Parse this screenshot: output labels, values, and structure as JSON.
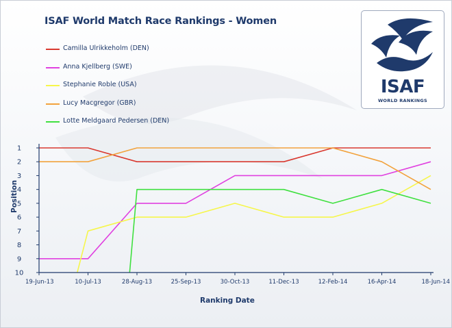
{
  "chart_data": {
    "type": "line",
    "title": "ISAF World Match Race Rankings - Women",
    "xlabel": "Ranking Date",
    "ylabel": "Position",
    "categories": [
      "19-Jun-13",
      "10-Jul-13",
      "28-Aug-13",
      "25-Sep-13",
      "30-Oct-13",
      "11-Dec-13",
      "12-Feb-14",
      "16-Apr-14",
      "18-Jun-14"
    ],
    "yticks": [
      1,
      2,
      3,
      4,
      5,
      6,
      7,
      8,
      9,
      10
    ],
    "ylim": [
      10,
      1
    ],
    "y_inverted": true,
    "grid": false,
    "legend_position": "top-left",
    "series": [
      {
        "name": "Camilla Ulrikkeholm (DEN)",
        "color": "#d9382f",
        "values": [
          1,
          1,
          2,
          2,
          2,
          2,
          1,
          1,
          1
        ]
      },
      {
        "name": "Anna Kjellberg (SWE)",
        "color": "#e040e0",
        "values": [
          9,
          9,
          5,
          5,
          3,
          3,
          3,
          3,
          2
        ]
      },
      {
        "name": "Stephanie Roble (USA)",
        "color": "#f6f64a",
        "points": [
          [
            0.78,
            10
          ],
          [
            1,
            7
          ],
          [
            1.5,
            6.5
          ],
          [
            2,
            6
          ],
          [
            3,
            6
          ],
          [
            4,
            5
          ],
          [
            5,
            6
          ],
          [
            6,
            6
          ],
          [
            7,
            5
          ],
          [
            8,
            3
          ]
        ]
      },
      {
        "name": "Lucy Macgregor (GBR)",
        "color": "#f2a23c",
        "values": [
          2,
          2,
          1,
          1,
          1,
          1,
          1,
          2,
          4
        ]
      },
      {
        "name": "Lotte Meldgaard Pedersen (DEN)",
        "color": "#3fe03f",
        "points": [
          [
            1.85,
            10
          ],
          [
            2,
            4
          ],
          [
            3,
            4
          ],
          [
            4,
            4
          ],
          [
            5,
            4
          ],
          [
            6,
            5
          ],
          [
            7,
            4
          ],
          [
            8,
            5
          ]
        ]
      }
    ]
  },
  "logo": {
    "text": "ISAF",
    "subtext": "WORLD RANKINGS"
  },
  "colors": {
    "title": "#1f3a6b",
    "axis": "#1f3a6b"
  }
}
